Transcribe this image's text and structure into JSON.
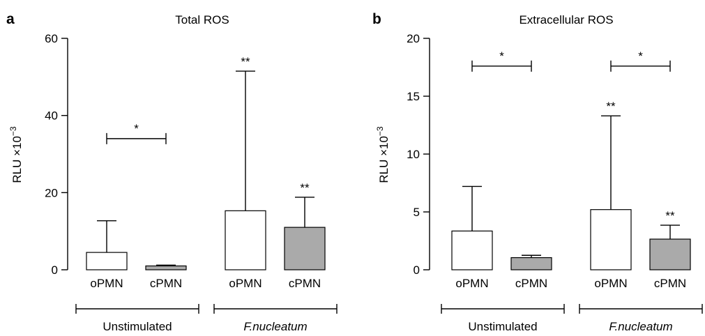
{
  "chart_data": [
    {
      "type": "bar",
      "panel": "a",
      "title": "Total ROS",
      "ylabel": "RLU ×10",
      "ylabel_exponent": "−3",
      "ylim": [
        0,
        60
      ],
      "yticks": [
        "0",
        "20",
        "40",
        "60"
      ],
      "ytick_values": [
        0,
        20,
        40,
        60
      ],
      "groups": [
        {
          "label": "Unstimulated",
          "italic": false,
          "categories": [
            "oPMN",
            "cPMN"
          ]
        },
        {
          "label": "F.nucleatum",
          "italic": true,
          "categories": [
            "oPMN",
            "cPMN"
          ]
        }
      ],
      "bars": [
        {
          "category": "oPMN",
          "value": 4.5,
          "error": 12.7,
          "color": "#ffffff",
          "sig": ""
        },
        {
          "category": "cPMN",
          "value": 1.0,
          "error": 1.2,
          "color": "#aaaaaa",
          "sig": ""
        },
        {
          "category": "oPMN",
          "value": 15.3,
          "error": 51.5,
          "color": "#ffffff",
          "sig": "**"
        },
        {
          "category": "cPMN",
          "value": 11.0,
          "error": 18.8,
          "color": "#aaaaaa",
          "sig": "**"
        }
      ],
      "brackets": [
        {
          "from": 0,
          "to": 1,
          "y": 34,
          "label": "*"
        }
      ]
    },
    {
      "type": "bar",
      "panel": "b",
      "title": "Extracellular ROS",
      "ylabel": "RLU ×10",
      "ylabel_exponent": "−3",
      "ylim": [
        0,
        20
      ],
      "yticks": [
        "0",
        "5",
        "10",
        "15",
        "20"
      ],
      "ytick_values": [
        0,
        5,
        10,
        15,
        20
      ],
      "groups": [
        {
          "label": "Unstimulated",
          "italic": false,
          "categories": [
            "oPMN",
            "cPMN"
          ]
        },
        {
          "label": "F.nucleatum",
          "italic": true,
          "categories": [
            "oPMN",
            "cPMN"
          ]
        }
      ],
      "bars": [
        {
          "category": "oPMN",
          "value": 3.35,
          "error": 7.2,
          "color": "#ffffff",
          "sig": ""
        },
        {
          "category": "cPMN",
          "value": 1.05,
          "error": 1.25,
          "color": "#aaaaaa",
          "sig": ""
        },
        {
          "category": "oPMN",
          "value": 5.2,
          "error": 13.3,
          "color": "#ffffff",
          "sig": "**"
        },
        {
          "category": "cPMN",
          "value": 2.65,
          "error": 3.85,
          "color": "#aaaaaa",
          "sig": "**"
        }
      ],
      "brackets": [
        {
          "from": 0,
          "to": 1,
          "y": 17.6,
          "label": "*"
        },
        {
          "from": 2,
          "to": 3,
          "y": 17.6,
          "label": "*"
        }
      ]
    }
  ]
}
